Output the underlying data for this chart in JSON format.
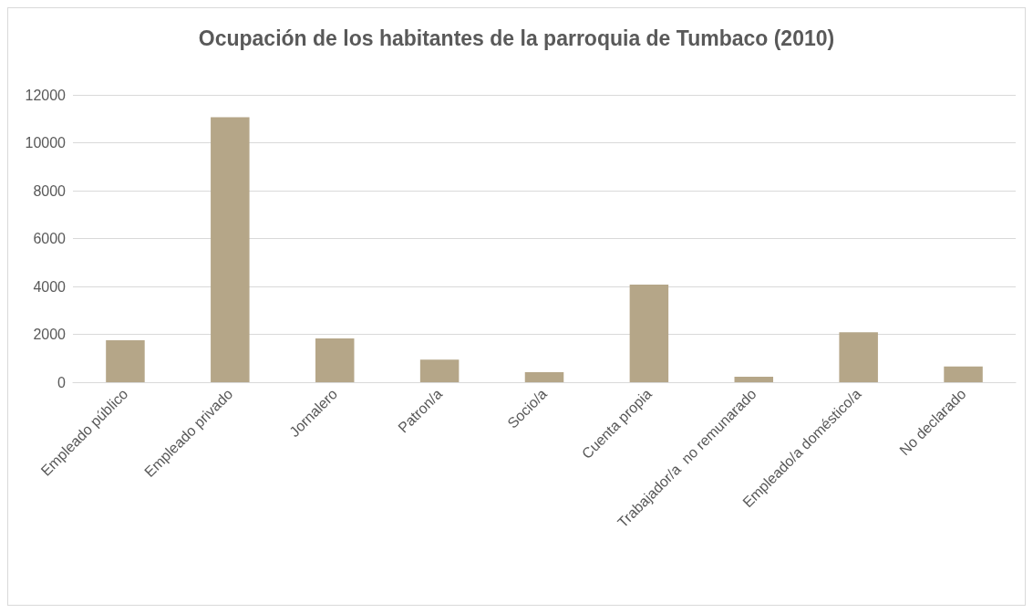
{
  "chart_data": {
    "type": "bar",
    "title": "Ocupación de los habitantes de la parroquia de Tumbaco (2010)",
    "categories": [
      "Empleado público",
      "Empleado privado",
      "Jornalero",
      "Patron/a",
      "Socio/a",
      "Cuenta propia",
      "Trabajador/a  no remunarado",
      "Empleado/a doméstico/a",
      "No declarado"
    ],
    "values": [
      1750,
      11070,
      1830,
      940,
      420,
      4080,
      230,
      2090,
      660
    ],
    "color": "#b5a688",
    "ylim": [
      0,
      12000
    ],
    "yticks": [
      0,
      2000,
      4000,
      6000,
      8000,
      10000,
      12000
    ],
    "grid": "y"
  }
}
